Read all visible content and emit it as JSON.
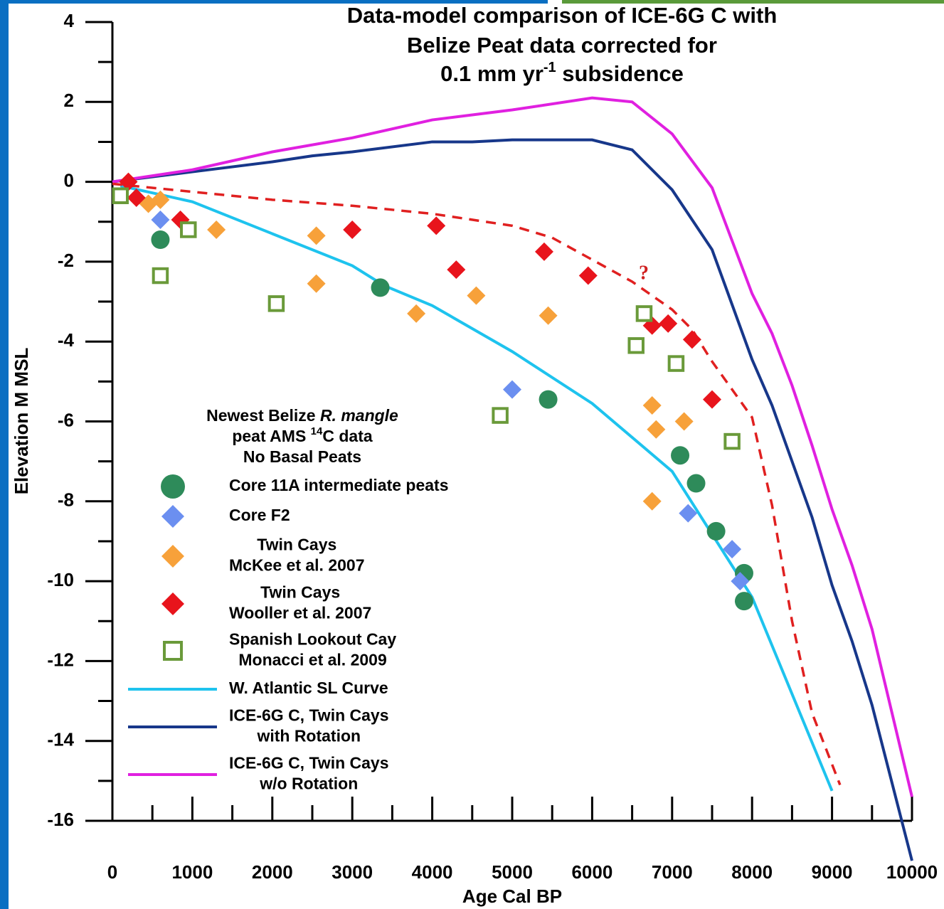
{
  "chart_data": {
    "type": "scatter",
    "title": [
      "Data-model comparison of ICE-6G C with",
      "Belize Peat data corrected for",
      [
        "0.1 mm yr",
        "-1",
        " subsidence"
      ]
    ],
    "x_label": "Age Cal BP",
    "y_label": "Elevation M MSL",
    "legend_title": [
      [
        "Newest Belize ",
        "R. mangle"
      ],
      [
        "peat AMS ",
        "14",
        "C data"
      ],
      [
        "No Basal Peats"
      ]
    ],
    "annotation": "?",
    "xlim": [
      0,
      10000
    ],
    "ylim": [
      -16,
      4
    ],
    "xticks": [
      0,
      1000,
      2000,
      3000,
      4000,
      5000,
      6000,
      7000,
      8000,
      9000,
      10000
    ],
    "yticks": [
      -16,
      -14,
      -12,
      -10,
      -8,
      -6,
      -4,
      -2,
      0,
      2,
      4
    ],
    "series": [
      {
        "name": [
          "Core 11A intermediate peats"
        ],
        "type": "scatter",
        "marker": "circle",
        "color": "#2e8b5a",
        "x": [
          600,
          3350,
          5450,
          7100,
          7300,
          7550,
          7900,
          7900
        ],
        "values": [
          -1.45,
          -2.65,
          -5.45,
          -6.85,
          -7.55,
          -8.75,
          -9.8,
          -10.5
        ]
      },
      {
        "name": [
          "Core F2"
        ],
        "type": "scatter",
        "marker": "diamond",
        "color": "#6b8ff0",
        "x": [
          600,
          5000,
          7200,
          7750,
          7850
        ],
        "values": [
          -0.95,
          -5.2,
          -8.3,
          -9.2,
          -10.0
        ]
      },
      {
        "name": [
          "Twin Cays",
          "McKee et al. 2007"
        ],
        "type": "scatter",
        "marker": "diamond",
        "color": "#f7a13a",
        "x": [
          450,
          600,
          1300,
          2550,
          2550,
          3800,
          4550,
          5450,
          6750,
          6800,
          7150,
          6750
        ],
        "values": [
          -0.55,
          -0.45,
          -1.2,
          -1.35,
          -2.55,
          -3.3,
          -2.85,
          -3.35,
          -5.6,
          -6.2,
          -6.0,
          -8.0
        ]
      },
      {
        "name": [
          "Twin Cays",
          "Wooller et al. 2007"
        ],
        "type": "scatter",
        "marker": "diamond",
        "color": "#e8141c",
        "x": [
          200,
          300,
          850,
          3000,
          4050,
          4300,
          5400,
          5950,
          6750,
          6950,
          7250,
          7500
        ],
        "values": [
          0.0,
          -0.4,
          -0.95,
          -1.2,
          -1.1,
          -2.2,
          -1.75,
          -2.35,
          -3.6,
          -3.55,
          -3.95,
          -5.45
        ]
      },
      {
        "name": [
          "Spanish Lookout Cay",
          "Monacci et al. 2009"
        ],
        "type": "scatter",
        "marker": "square",
        "color": "#6a9a3a",
        "x": [
          100,
          600,
          950,
          2050,
          4850,
          6650,
          6550,
          7050,
          7750
        ],
        "values": [
          -0.35,
          -2.35,
          -1.2,
          -3.05,
          -5.85,
          -3.3,
          -4.1,
          -4.55,
          -6.5
        ]
      },
      {
        "name": [
          "W. Atlantic SL Curve"
        ],
        "type": "line",
        "color": "#1ec3ee",
        "x": [
          100,
          1000,
          2000,
          3000,
          3400,
          4000,
          5000,
          6000,
          7000,
          8000,
          9000
        ],
        "values": [
          -0.1,
          -0.5,
          -1.3,
          -2.1,
          -2.6,
          -3.1,
          -4.25,
          -5.55,
          -7.25,
          -10.4,
          -15.25
        ]
      },
      {
        "name": [
          "ICE-6G C, Twin Cays",
          "with Rotation"
        ],
        "type": "line",
        "color": "#17378a",
        "x": [
          0,
          1000,
          2000,
          2500,
          3000,
          4000,
          4500,
          5000,
          6000,
          6500,
          7000,
          7500,
          8000,
          8250,
          8750,
          9000,
          9250,
          9500,
          10000
        ],
        "values": [
          0,
          0.25,
          0.5,
          0.65,
          0.75,
          1.0,
          1.0,
          1.05,
          1.05,
          0.8,
          -0.2,
          -1.7,
          -4.45,
          -5.6,
          -8.4,
          -10.1,
          -11.5,
          -13.1,
          -17
        ]
      },
      {
        "name": [
          "ICE-6G C, Twin Cays",
          "w/o Rotation"
        ],
        "type": "line",
        "color": "#e020e0",
        "x": [
          0,
          1000,
          2000,
          3000,
          4000,
          5000,
          6000,
          6500,
          7000,
          7500,
          8000,
          8250,
          8500,
          8750,
          9000,
          9250,
          9500,
          10000
        ],
        "values": [
          0,
          0.3,
          0.75,
          1.1,
          1.55,
          1.8,
          2.1,
          2.0,
          1.2,
          -0.15,
          -2.8,
          -3.8,
          -5.1,
          -6.6,
          -8.2,
          -9.6,
          -11.2,
          -15.4
        ]
      },
      {
        "type": "line",
        "dash": true,
        "color": "#e02020",
        "x": [
          0,
          1000,
          2000,
          3000,
          4000,
          5000,
          5500,
          6000,
          6500,
          7000,
          7250,
          7500,
          8000,
          8250,
          8500,
          8750,
          9100
        ],
        "values": [
          -0.05,
          -0.25,
          -0.45,
          -0.6,
          -0.8,
          -1.1,
          -1.4,
          -1.95,
          -2.5,
          -3.2,
          -3.7,
          -4.5,
          -5.9,
          -8.1,
          -11.0,
          -13.3,
          -15.1
        ]
      }
    ]
  }
}
